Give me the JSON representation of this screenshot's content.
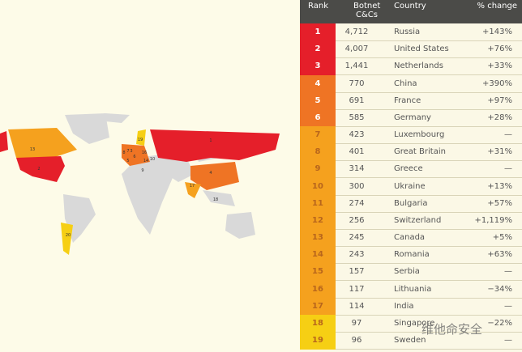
{
  "table": {
    "headers": {
      "rank": "Rank",
      "botnet": "Botnet C&Cs",
      "botnet_l1": "Botnet",
      "botnet_l2": "C&Cs",
      "country": "Country",
      "change": "% change"
    },
    "rows": [
      {
        "rank": "1",
        "count": "4,712",
        "country": "Russia",
        "change": "+143%",
        "tier": "red"
      },
      {
        "rank": "2",
        "count": "4,007",
        "country": "United States",
        "change": "+76%",
        "tier": "red"
      },
      {
        "rank": "3",
        "count": "1,441",
        "country": "Netherlands",
        "change": "+33%",
        "tier": "red"
      },
      {
        "rank": "4",
        "count": "770",
        "country": "China",
        "change": "+390%",
        "tier": "orange"
      },
      {
        "rank": "5",
        "count": "691",
        "country": "France",
        "change": "+97%",
        "tier": "orange"
      },
      {
        "rank": "6",
        "count": "585",
        "country": "Germany",
        "change": "+28%",
        "tier": "orange"
      },
      {
        "rank": "7",
        "count": "423",
        "country": "Luxembourg",
        "change": "—",
        "tier": "amber"
      },
      {
        "rank": "8",
        "count": "401",
        "country": "Great Britain",
        "change": "+31%",
        "tier": "amber"
      },
      {
        "rank": "9",
        "count": "314",
        "country": "Greece",
        "change": "—",
        "tier": "amber"
      },
      {
        "rank": "10",
        "count": "300",
        "country": "Ukraine",
        "change": "+13%",
        "tier": "amber"
      },
      {
        "rank": "11",
        "count": "274",
        "country": "Bulgaria",
        "change": "+57%",
        "tier": "amber"
      },
      {
        "rank": "12",
        "count": "256",
        "country": "Switzerland",
        "change": "+1,119%",
        "tier": "amber"
      },
      {
        "rank": "13",
        "count": "245",
        "country": "Canada",
        "change": "+5%",
        "tier": "amber"
      },
      {
        "rank": "14",
        "count": "243",
        "country": "Romania",
        "change": "+63%",
        "tier": "amber"
      },
      {
        "rank": "15",
        "count": "157",
        "country": "Serbia",
        "change": "—",
        "tier": "amber"
      },
      {
        "rank": "16",
        "count": "117",
        "country": "Lithuania",
        "change": "−34%",
        "tier": "amber"
      },
      {
        "rank": "17",
        "count": "114",
        "country": "India",
        "change": "—",
        "tier": "amber"
      },
      {
        "rank": "18",
        "count": "97",
        "country": "Singapore",
        "change": "−22%",
        "tier": "yellow"
      },
      {
        "rank": "19",
        "count": "96",
        "country": "Sweden",
        "change": "—",
        "tier": "yellow"
      }
    ]
  },
  "colors": {
    "red": "#e51f2a",
    "orange": "#ef7424",
    "amber": "#f5a11e",
    "yellow": "#f6cf14",
    "land": "#d9d9d9",
    "header": "#4b4b48"
  },
  "chart_data": {
    "type": "table",
    "columns": [
      "Rank",
      "Botnet C&Cs",
      "Country",
      "% change"
    ],
    "values": [
      [
        1,
        4712,
        "Russia",
        "+143%"
      ],
      [
        2,
        4007,
        "United States",
        "+76%"
      ],
      [
        3,
        1441,
        "Netherlands",
        "+33%"
      ],
      [
        4,
        770,
        "China",
        "+390%"
      ],
      [
        5,
        691,
        "France",
        "+97%"
      ],
      [
        6,
        585,
        "Germany",
        "+28%"
      ],
      [
        7,
        423,
        "Luxembourg",
        "—"
      ],
      [
        8,
        401,
        "Great Britain",
        "+31%"
      ],
      [
        9,
        314,
        "Greece",
        "—"
      ],
      [
        10,
        300,
        "Ukraine",
        "+13%"
      ],
      [
        11,
        274,
        "Bulgaria",
        "+57%"
      ],
      [
        12,
        256,
        "Switzerland",
        "+1,119%"
      ],
      [
        13,
        245,
        "Canada",
        "+5%"
      ],
      [
        14,
        243,
        "Romania",
        "+63%"
      ],
      [
        15,
        157,
        "Serbia",
        "—"
      ],
      [
        16,
        117,
        "Lithuania",
        "−34%"
      ],
      [
        17,
        114,
        "India",
        "—"
      ],
      [
        18,
        97,
        "Singapore",
        "−22%"
      ],
      [
        19,
        96,
        "Sweden",
        "—"
      ]
    ]
  },
  "map": {
    "labels": {
      "russia": "1",
      "usa": "2",
      "china": "4",
      "canada": "13",
      "india": "17",
      "singapore": "18",
      "sweden": "19",
      "argentina": "20",
      "gb": "8",
      "ukraine": "10",
      "greece": "9",
      "nl": "3",
      "lux": "7",
      "france": "5",
      "germany": "6",
      "lith": "16",
      "romania": "14"
    }
  },
  "watermark": "维他命安全"
}
